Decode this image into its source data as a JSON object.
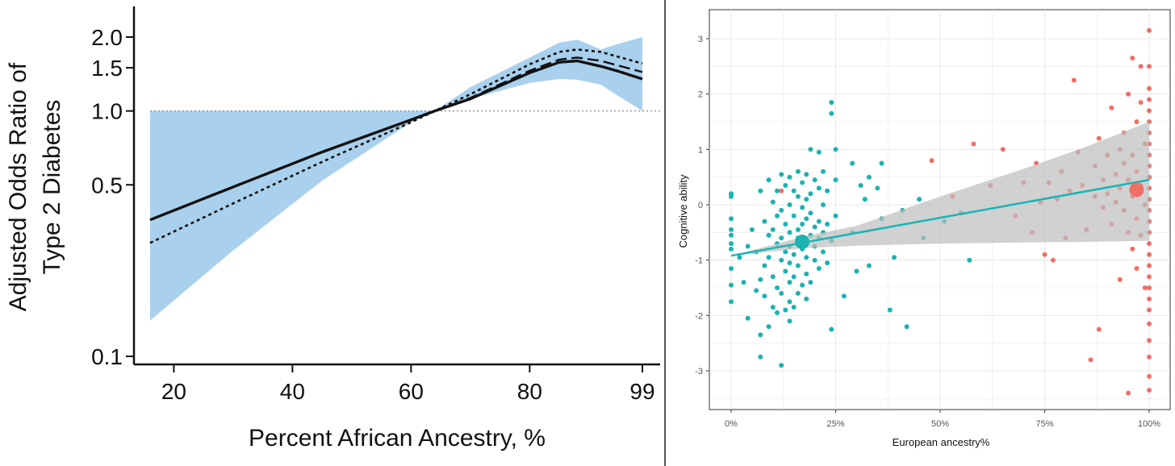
{
  "chart_data": [
    {
      "type": "line",
      "xlabel": "Percent African Ancestry, %",
      "ylabel_lines": [
        "Adjusted Odds Ratio of",
        "Type 2 Diabetes"
      ],
      "y_scale": "log",
      "xlim": [
        14,
        102
      ],
      "ylim": [
        0.09,
        2.6
      ],
      "x_ticks": [
        20,
        40,
        60,
        80,
        99
      ],
      "x_tick_labels": [
        "20",
        "40",
        "60",
        "80",
        "99"
      ],
      "y_ticks": [
        0.1,
        0.5,
        1.0,
        1.5,
        2.0
      ],
      "y_tick_labels": [
        "0.1",
        "0.5",
        "1.0",
        "1.5",
        "2.0"
      ],
      "reference_line": 1.0,
      "colors": {
        "band": "#a9d1ee",
        "lines": "#111111"
      },
      "band": {
        "x": [
          16,
          30,
          45,
          60,
          64,
          70,
          80,
          85,
          88,
          92,
          95,
          99
        ],
        "lower": [
          0.14,
          0.27,
          0.52,
          0.9,
          1.0,
          1.12,
          1.3,
          1.35,
          1.34,
          1.28,
          1.15,
          1.0
        ],
        "upper": [
          1.0,
          1.0,
          1.0,
          1.0,
          1.0,
          1.25,
          1.65,
          1.9,
          1.95,
          1.78,
          1.88,
          2.0
        ]
      },
      "series": [
        {
          "style": "solid",
          "x": [
            16,
            30,
            45,
            60,
            64,
            70,
            80,
            85,
            88,
            92,
            95,
            99
          ],
          "y": [
            0.36,
            0.49,
            0.68,
            0.92,
            1.0,
            1.12,
            1.43,
            1.58,
            1.6,
            1.52,
            1.45,
            1.35
          ]
        },
        {
          "style": "long-dash",
          "x": [
            16,
            30,
            45,
            60,
            64,
            70,
            80,
            85,
            88,
            92,
            95,
            99
          ],
          "y": [
            0.36,
            0.49,
            0.68,
            0.92,
            1.0,
            1.13,
            1.46,
            1.62,
            1.65,
            1.6,
            1.53,
            1.44
          ]
        },
        {
          "style": "dotted",
          "x": [
            16,
            30,
            45,
            60,
            64,
            70,
            80,
            85,
            88,
            92,
            95,
            99
          ],
          "y": [
            0.29,
            0.42,
            0.62,
            0.9,
            1.0,
            1.17,
            1.55,
            1.74,
            1.78,
            1.74,
            1.66,
            1.56
          ]
        }
      ]
    },
    {
      "type": "scatter",
      "xlabel": "European ancestry%",
      "ylabel": "Cognitive ability",
      "xlim": [
        -0.05,
        1.03
      ],
      "ylim": [
        -3.65,
        3.3
      ],
      "x_ticks": [
        0,
        0.25,
        0.5,
        0.75,
        1.0
      ],
      "x_tick_labels": [
        "0%",
        "25%",
        "50%",
        "75%",
        "100%"
      ],
      "y_ticks": [
        -3,
        -2,
        -1,
        0,
        1,
        2,
        3
      ],
      "y_tick_labels": [
        "-3",
        "-2",
        "-1",
        "0",
        "1",
        "2",
        "3"
      ],
      "grid": true,
      "colors": {
        "teal": "#1cb2b2",
        "salmon": "#ef6f67",
        "ribbon": "#bdbdbd",
        "fit": "#19b5b5",
        "panel": "#ffffff",
        "grid": "#e8e8e8"
      },
      "fit_line": {
        "x": [
          0,
          1.0
        ],
        "y": [
          -0.92,
          0.45
        ]
      },
      "ribbon": {
        "x": [
          0,
          0.18,
          0.3,
          0.5,
          0.7,
          0.85,
          1.0
        ],
        "lower": [
          -0.92,
          -0.78,
          -0.74,
          -0.7,
          -0.68,
          -0.67,
          -0.65
        ],
        "upper": [
          -0.92,
          -0.56,
          -0.38,
          0.15,
          0.65,
          1.05,
          1.5
        ]
      },
      "mean_points": [
        {
          "group": "teal",
          "x": 0.17,
          "y": -0.67
        },
        {
          "group": "salmon",
          "x": 0.97,
          "y": 0.27
        }
      ],
      "series": [
        {
          "group": "teal",
          "points": [
            [
              0.0,
              0.2
            ],
            [
              0.0,
              0.15
            ],
            [
              0.0,
              -0.25
            ],
            [
              0.0,
              -0.45
            ],
            [
              0.0,
              -0.55
            ],
            [
              0.0,
              -0.7
            ],
            [
              0.0,
              -0.8
            ],
            [
              0.0,
              -1.15
            ],
            [
              0.0,
              -1.45
            ],
            [
              0.0,
              -1.75
            ],
            [
              0.02,
              -0.95
            ],
            [
              0.03,
              -1.4
            ],
            [
              0.04,
              -0.75
            ],
            [
              0.04,
              -2.05
            ],
            [
              0.05,
              -0.45
            ],
            [
              0.06,
              -0.85
            ],
            [
              0.06,
              -1.55
            ],
            [
              0.07,
              0.25
            ],
            [
              0.07,
              -1.35
            ],
            [
              0.07,
              -2.35
            ],
            [
              0.07,
              -2.75
            ],
            [
              0.08,
              -0.3
            ],
            [
              0.08,
              -1.1
            ],
            [
              0.08,
              -1.65
            ],
            [
              0.09,
              0.45
            ],
            [
              0.09,
              -0.55
            ],
            [
              0.09,
              -0.95
            ],
            [
              0.09,
              -2.2
            ],
            [
              0.1,
              0.05
            ],
            [
              0.1,
              -0.45
            ],
            [
              0.1,
              -1.3
            ],
            [
              0.1,
              -1.85
            ],
            [
              0.11,
              0.25
            ],
            [
              0.11,
              -0.2
            ],
            [
              0.11,
              -0.7
            ],
            [
              0.11,
              -1.5
            ],
            [
              0.11,
              -1.95
            ],
            [
              0.12,
              0.55
            ],
            [
              0.12,
              -0.1
            ],
            [
              0.12,
              -0.6
            ],
            [
              0.12,
              -1.0
            ],
            [
              0.12,
              -1.6
            ],
            [
              0.12,
              -2.9
            ],
            [
              0.13,
              0.35
            ],
            [
              0.13,
              -0.35
            ],
            [
              0.13,
              -0.85
            ],
            [
              0.13,
              -1.2
            ],
            [
              0.13,
              -1.9
            ],
            [
              0.14,
              0.5
            ],
            [
              0.14,
              0.0
            ],
            [
              0.14,
              -0.5
            ],
            [
              0.14,
              -0.75
            ],
            [
              0.14,
              -1.05
            ],
            [
              0.14,
              -1.4
            ],
            [
              0.14,
              -1.75
            ],
            [
              0.14,
              -2.1
            ],
            [
              0.15,
              0.25
            ],
            [
              0.15,
              -0.2
            ],
            [
              0.15,
              -0.9
            ],
            [
              0.15,
              -1.3
            ],
            [
              0.15,
              -1.85
            ],
            [
              0.16,
              0.6
            ],
            [
              0.16,
              0.15
            ],
            [
              0.16,
              -0.45
            ],
            [
              0.16,
              -0.6
            ],
            [
              0.16,
              -1.1
            ],
            [
              0.16,
              -1.6
            ],
            [
              0.17,
              0.4
            ],
            [
              0.17,
              -0.05
            ],
            [
              0.17,
              -0.35
            ],
            [
              0.17,
              -0.8
            ],
            [
              0.17,
              -1.45
            ],
            [
              0.18,
              0.55
            ],
            [
              0.18,
              0.1
            ],
            [
              0.18,
              -0.25
            ],
            [
              0.18,
              -0.95
            ],
            [
              0.18,
              -1.25
            ],
            [
              0.18,
              -1.7
            ],
            [
              0.19,
              1.0
            ],
            [
              0.19,
              0.2
            ],
            [
              0.19,
              -0.15
            ],
            [
              0.19,
              -0.55
            ],
            [
              0.19,
              -1.4
            ],
            [
              0.2,
              0.45
            ],
            [
              0.2,
              -0.4
            ],
            [
              0.2,
              -0.75
            ],
            [
              0.2,
              -1.0
            ],
            [
              0.21,
              0.95
            ],
            [
              0.21,
              0.3
            ],
            [
              0.21,
              -0.3
            ],
            [
              0.21,
              -0.6
            ],
            [
              0.21,
              -1.15
            ],
            [
              0.22,
              0.6
            ],
            [
              0.22,
              0.0
            ],
            [
              0.22,
              -0.5
            ],
            [
              0.22,
              -0.85
            ],
            [
              0.23,
              0.25
            ],
            [
              0.23,
              -0.35
            ],
            [
              0.23,
              -1.05
            ],
            [
              0.24,
              1.85
            ],
            [
              0.24,
              1.65
            ],
            [
              0.24,
              -0.65
            ],
            [
              0.24,
              -2.25
            ],
            [
              0.25,
              1.0
            ],
            [
              0.25,
              0.45
            ],
            [
              0.25,
              -0.2
            ],
            [
              0.27,
              -1.65
            ],
            [
              0.29,
              0.75
            ],
            [
              0.29,
              -0.5
            ],
            [
              0.3,
              -1.2
            ],
            [
              0.31,
              0.35
            ],
            [
              0.32,
              0.1
            ],
            [
              0.33,
              0.5
            ],
            [
              0.33,
              -1.1
            ],
            [
              0.35,
              0.3
            ],
            [
              0.36,
              0.75
            ],
            [
              0.36,
              -0.25
            ],
            [
              0.38,
              -1.9
            ],
            [
              0.39,
              -0.95
            ],
            [
              0.41,
              -0.1
            ],
            [
              0.42,
              -2.2
            ],
            [
              0.45,
              0.1
            ],
            [
              0.46,
              -0.6
            ],
            [
              0.51,
              -0.3
            ],
            [
              0.55,
              -0.15
            ],
            [
              0.57,
              -1.0
            ]
          ]
        },
        {
          "group": "salmon",
          "points": [
            [
              0.12,
              0.25
            ],
            [
              0.48,
              0.8
            ],
            [
              0.53,
              0.15
            ],
            [
              0.58,
              1.1
            ],
            [
              0.62,
              0.35
            ],
            [
              0.65,
              1.0
            ],
            [
              0.68,
              -0.2
            ],
            [
              0.7,
              0.4
            ],
            [
              0.72,
              -0.5
            ],
            [
              0.73,
              0.75
            ],
            [
              0.74,
              0.05
            ],
            [
              0.75,
              -0.9
            ],
            [
              0.76,
              0.4
            ],
            [
              0.77,
              -1.0
            ],
            [
              0.78,
              0.1
            ],
            [
              0.79,
              0.6
            ],
            [
              0.8,
              -0.6
            ],
            [
              0.81,
              0.25
            ],
            [
              0.82,
              2.25
            ],
            [
              0.83,
              0.95
            ],
            [
              0.84,
              0.35
            ],
            [
              0.85,
              -0.45
            ],
            [
              0.86,
              -2.8
            ],
            [
              0.87,
              0.7
            ],
            [
              0.87,
              0.15
            ],
            [
              0.88,
              1.2
            ],
            [
              0.88,
              -2.25
            ],
            [
              0.89,
              0.45
            ],
            [
              0.89,
              -0.05
            ],
            [
              0.9,
              0.9
            ],
            [
              0.9,
              0.2
            ],
            [
              0.91,
              -0.35
            ],
            [
              0.91,
              1.75
            ],
            [
              0.92,
              0.55
            ],
            [
              0.92,
              0.05
            ],
            [
              0.93,
              1.0
            ],
            [
              0.93,
              -1.35
            ],
            [
              0.93,
              0.3
            ],
            [
              0.94,
              0.75
            ],
            [
              0.94,
              -0.1
            ],
            [
              0.94,
              1.3
            ],
            [
              0.95,
              2.0
            ],
            [
              0.95,
              0.45
            ],
            [
              0.95,
              -0.5
            ],
            [
              0.95,
              -3.4
            ],
            [
              0.96,
              0.9
            ],
            [
              0.96,
              0.15
            ],
            [
              0.96,
              -0.8
            ],
            [
              0.96,
              2.65
            ],
            [
              0.97,
              1.5
            ],
            [
              0.97,
              0.6
            ],
            [
              0.97,
              -0.25
            ],
            [
              0.97,
              -1.15
            ],
            [
              0.98,
              1.85
            ],
            [
              0.98,
              0.35
            ],
            [
              0.98,
              -0.55
            ],
            [
              0.98,
              2.5
            ],
            [
              0.99,
              1.1
            ],
            [
              0.99,
              0.0
            ],
            [
              0.99,
              -1.5
            ],
            [
              1.0,
              3.15
            ],
            [
              1.0,
              2.5
            ],
            [
              1.0,
              2.1
            ],
            [
              1.0,
              1.9
            ],
            [
              1.0,
              1.7
            ],
            [
              1.0,
              1.5
            ],
            [
              1.0,
              1.3
            ],
            [
              1.0,
              1.1
            ],
            [
              1.0,
              0.9
            ],
            [
              1.0,
              0.7
            ],
            [
              1.0,
              0.5
            ],
            [
              1.0,
              0.3
            ],
            [
              1.0,
              0.1
            ],
            [
              1.0,
              -0.1
            ],
            [
              1.0,
              -0.3
            ],
            [
              1.0,
              -0.5
            ],
            [
              1.0,
              -0.7
            ],
            [
              1.0,
              -0.9
            ],
            [
              1.0,
              -1.1
            ],
            [
              1.0,
              -1.3
            ],
            [
              1.0,
              -1.5
            ],
            [
              1.0,
              -1.7
            ],
            [
              1.0,
              -1.9
            ],
            [
              1.0,
              -2.15
            ],
            [
              1.0,
              -2.45
            ],
            [
              1.0,
              -2.75
            ],
            [
              1.0,
              -3.1
            ],
            [
              1.0,
              -3.35
            ]
          ]
        }
      ]
    }
  ]
}
